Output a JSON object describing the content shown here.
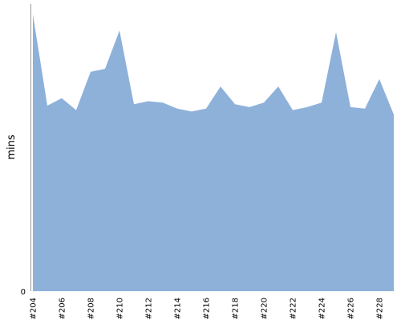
{
  "chart_data": {
    "type": "area",
    "title": "",
    "xlabel": "",
    "ylabel": "mins",
    "ylim": [
      0,
      19.5
    ],
    "y_ticks": [
      {
        "value": 0,
        "label": "0"
      }
    ],
    "x": [
      204,
      205,
      206,
      207,
      208,
      209,
      210,
      211,
      212,
      213,
      214,
      215,
      216,
      217,
      218,
      219,
      220,
      221,
      222,
      223,
      224,
      225,
      226,
      227,
      228,
      229
    ],
    "x_tick_labels": [
      {
        "x": 204,
        "label": "#204"
      },
      {
        "x": 206,
        "label": "#206"
      },
      {
        "x": 208,
        "label": "#208"
      },
      {
        "x": 210,
        "label": "#210"
      },
      {
        "x": 212,
        "label": "#212"
      },
      {
        "x": 214,
        "label": "#214"
      },
      {
        "x": 216,
        "label": "#216"
      },
      {
        "x": 218,
        "label": "#218"
      },
      {
        "x": 220,
        "label": "#220"
      },
      {
        "x": 222,
        "label": "#222"
      },
      {
        "x": 224,
        "label": "#224"
      },
      {
        "x": 226,
        "label": "#226"
      },
      {
        "x": 228,
        "label": "#228"
      }
    ],
    "series": [
      {
        "values": [
          18.8,
          12.6,
          13.1,
          12.3,
          14.9,
          15.1,
          17.7,
          12.7,
          12.9,
          12.8,
          12.4,
          12.2,
          12.4,
          13.9,
          12.7,
          12.5,
          12.8,
          13.9,
          12.3,
          12.5,
          12.8,
          17.6,
          12.5,
          12.4,
          14.4,
          12.0
        ],
        "color": "#8eb1da"
      }
    ],
    "grid": false,
    "legend": "none"
  }
}
